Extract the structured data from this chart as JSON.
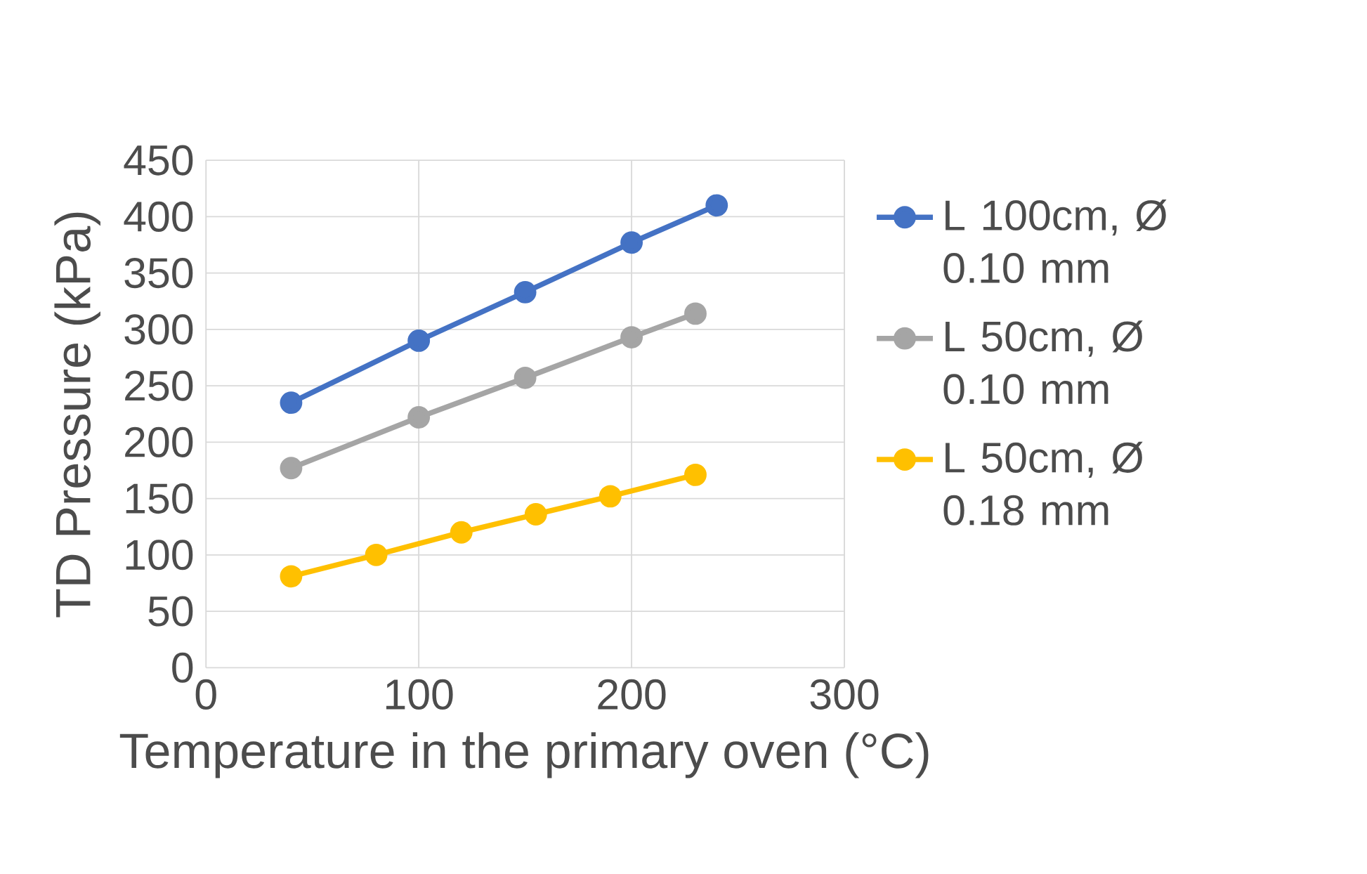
{
  "chart_data": {
    "type": "line",
    "xlabel": "Temperature in the primary oven (°C)",
    "ylabel": "TD Pressure (kPa)",
    "xlim": [
      0,
      300
    ],
    "xticks": [
      0,
      100,
      200,
      300
    ],
    "ylim": [
      0,
      450
    ],
    "yticks": [
      0,
      50,
      100,
      150,
      200,
      250,
      300,
      350,
      400,
      450
    ],
    "grid": true,
    "legend": "right",
    "marker": "circle",
    "line_style": "solid",
    "series": [
      {
        "name": "L 100cm, Ø 0.10 mm",
        "color": "#4472c4",
        "x": [
          40,
          100,
          150,
          200,
          240
        ],
        "values": [
          235,
          290,
          333,
          377,
          410
        ]
      },
      {
        "name": "L 50cm, Ø 0.10 mm",
        "color": "#a5a5a5",
        "x": [
          40,
          100,
          150,
          200,
          230
        ],
        "values": [
          177,
          222,
          257,
          293,
          314
        ]
      },
      {
        "name": "L 50cm, Ø 0.18 mm",
        "color": "#ffc000",
        "x": [
          40,
          80,
          120,
          155,
          190,
          230
        ],
        "values": [
          81,
          100,
          120,
          136,
          152,
          171
        ]
      }
    ]
  }
}
